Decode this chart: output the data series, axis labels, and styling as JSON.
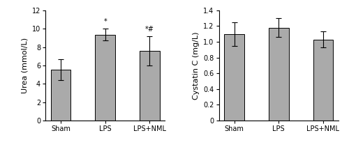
{
  "left": {
    "categories": [
      "Sham",
      "LPS",
      "LPS+NML"
    ],
    "values": [
      5.55,
      9.35,
      7.6
    ],
    "errors": [
      1.15,
      0.65,
      1.6
    ],
    "ylabel": "Urea (mmol/L)",
    "ylim": [
      0,
      12
    ],
    "yticks": [
      0,
      2,
      4,
      6,
      8,
      10,
      12
    ],
    "annotations": [
      "",
      "*",
      "*#"
    ]
  },
  "right": {
    "categories": [
      "Sham",
      "LPS",
      "LPS+NML"
    ],
    "values": [
      1.1,
      1.18,
      1.03
    ],
    "errors": [
      0.15,
      0.12,
      0.1
    ],
    "ylabel": "Cystatin C (mg/L)",
    "ylim": [
      0,
      1.4
    ],
    "yticks": [
      0,
      0.2,
      0.4,
      0.6,
      0.8,
      1.0,
      1.2,
      1.4
    ],
    "annotations": [
      "",
      "",
      ""
    ]
  },
  "bar_color": "#aaaaaa",
  "bar_edge_color": "#000000",
  "bar_width": 0.45,
  "capsize": 3,
  "annotation_fontsize": 7,
  "tick_fontsize": 7,
  "label_fontsize": 8,
  "xlabel_fontsize": 7
}
